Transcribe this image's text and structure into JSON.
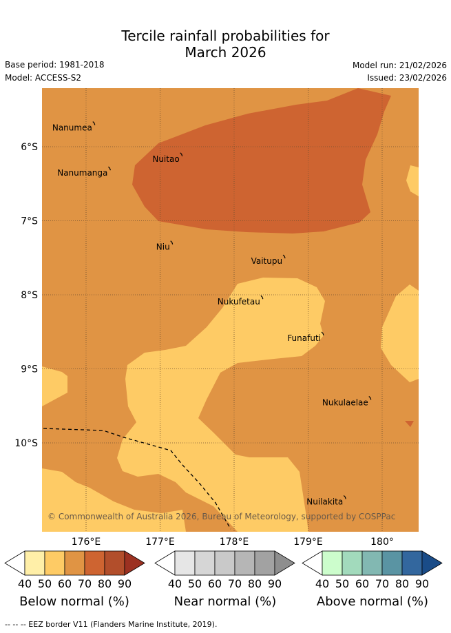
{
  "title": {
    "line1": "Tercile rainfall probabilities for",
    "line2": "March 2026"
  },
  "meta": {
    "base_period": "Base period: 1981-2018",
    "model": "Model: ACCESS-S2",
    "model_run": "Model run: 21/02/2026",
    "issued": "Issued: 23/02/2026"
  },
  "map": {
    "lon_ticks": [
      "176°E",
      "177°E",
      "178°E",
      "179°E",
      "180°"
    ],
    "lat_ticks": [
      "6°S",
      "7°S",
      "8°S",
      "9°S",
      "10°S"
    ],
    "places": [
      {
        "name": "Nanumea",
        "lon": 176.11,
        "lat": -5.68
      },
      {
        "name": "Nuitao",
        "lon": 177.29,
        "lat": -6.1
      },
      {
        "name": "Nanumanga",
        "lon": 176.32,
        "lat": -6.29
      },
      {
        "name": "Niu",
        "lon": 177.16,
        "lat": -7.29
      },
      {
        "name": "Vaitupu",
        "lon": 178.68,
        "lat": -7.48
      },
      {
        "name": "Nukufetau",
        "lon": 178.38,
        "lat": -8.03
      },
      {
        "name": "Funafuti",
        "lon": 179.2,
        "lat": -8.52
      },
      {
        "name": "Nukulaelae",
        "lon": 179.84,
        "lat": -9.39
      },
      {
        "name": "Nuilakita",
        "lon": 179.5,
        "lat": -10.73
      }
    ],
    "copyright": "© Commonwealth of Australia 2026, Bureau of Meteorology, supported by COSPPac",
    "colors": {
      "ocean_base": "#E09444",
      "prob_70": "#CE6431",
      "prob_50": "#FECB65",
      "grid": "#6f5030",
      "eez": "#000000",
      "copyright_text": "#6a5a48"
    }
  },
  "colorbars": [
    {
      "name": "below",
      "label": "Below normal (%)",
      "ticks": [
        "40",
        "50",
        "60",
        "70",
        "80",
        "90"
      ],
      "colors": [
        "#FFEFA8",
        "#FECB65",
        "#E09444",
        "#CE6431",
        "#B24E2B",
        "#9C3121"
      ]
    },
    {
      "name": "near",
      "label": "Near normal (%)",
      "ticks": [
        "40",
        "50",
        "60",
        "70",
        "80",
        "90"
      ],
      "colors": [
        "#E6E6E6",
        "#D6D6D6",
        "#C9C9C9",
        "#B6B6B6",
        "#A2A2A2",
        "#8E8E8E"
      ]
    },
    {
      "name": "above",
      "label": "Above normal (%)",
      "ticks": [
        "40",
        "50",
        "60",
        "70",
        "80",
        "90"
      ],
      "colors": [
        "#CCFDCC",
        "#A2DABC",
        "#82B8B2",
        "#5A94A3",
        "#33679E",
        "#1A4C88"
      ]
    }
  ],
  "footer": "--  --  -- EEZ border V11 (Flanders Marine Institute, 2019)."
}
